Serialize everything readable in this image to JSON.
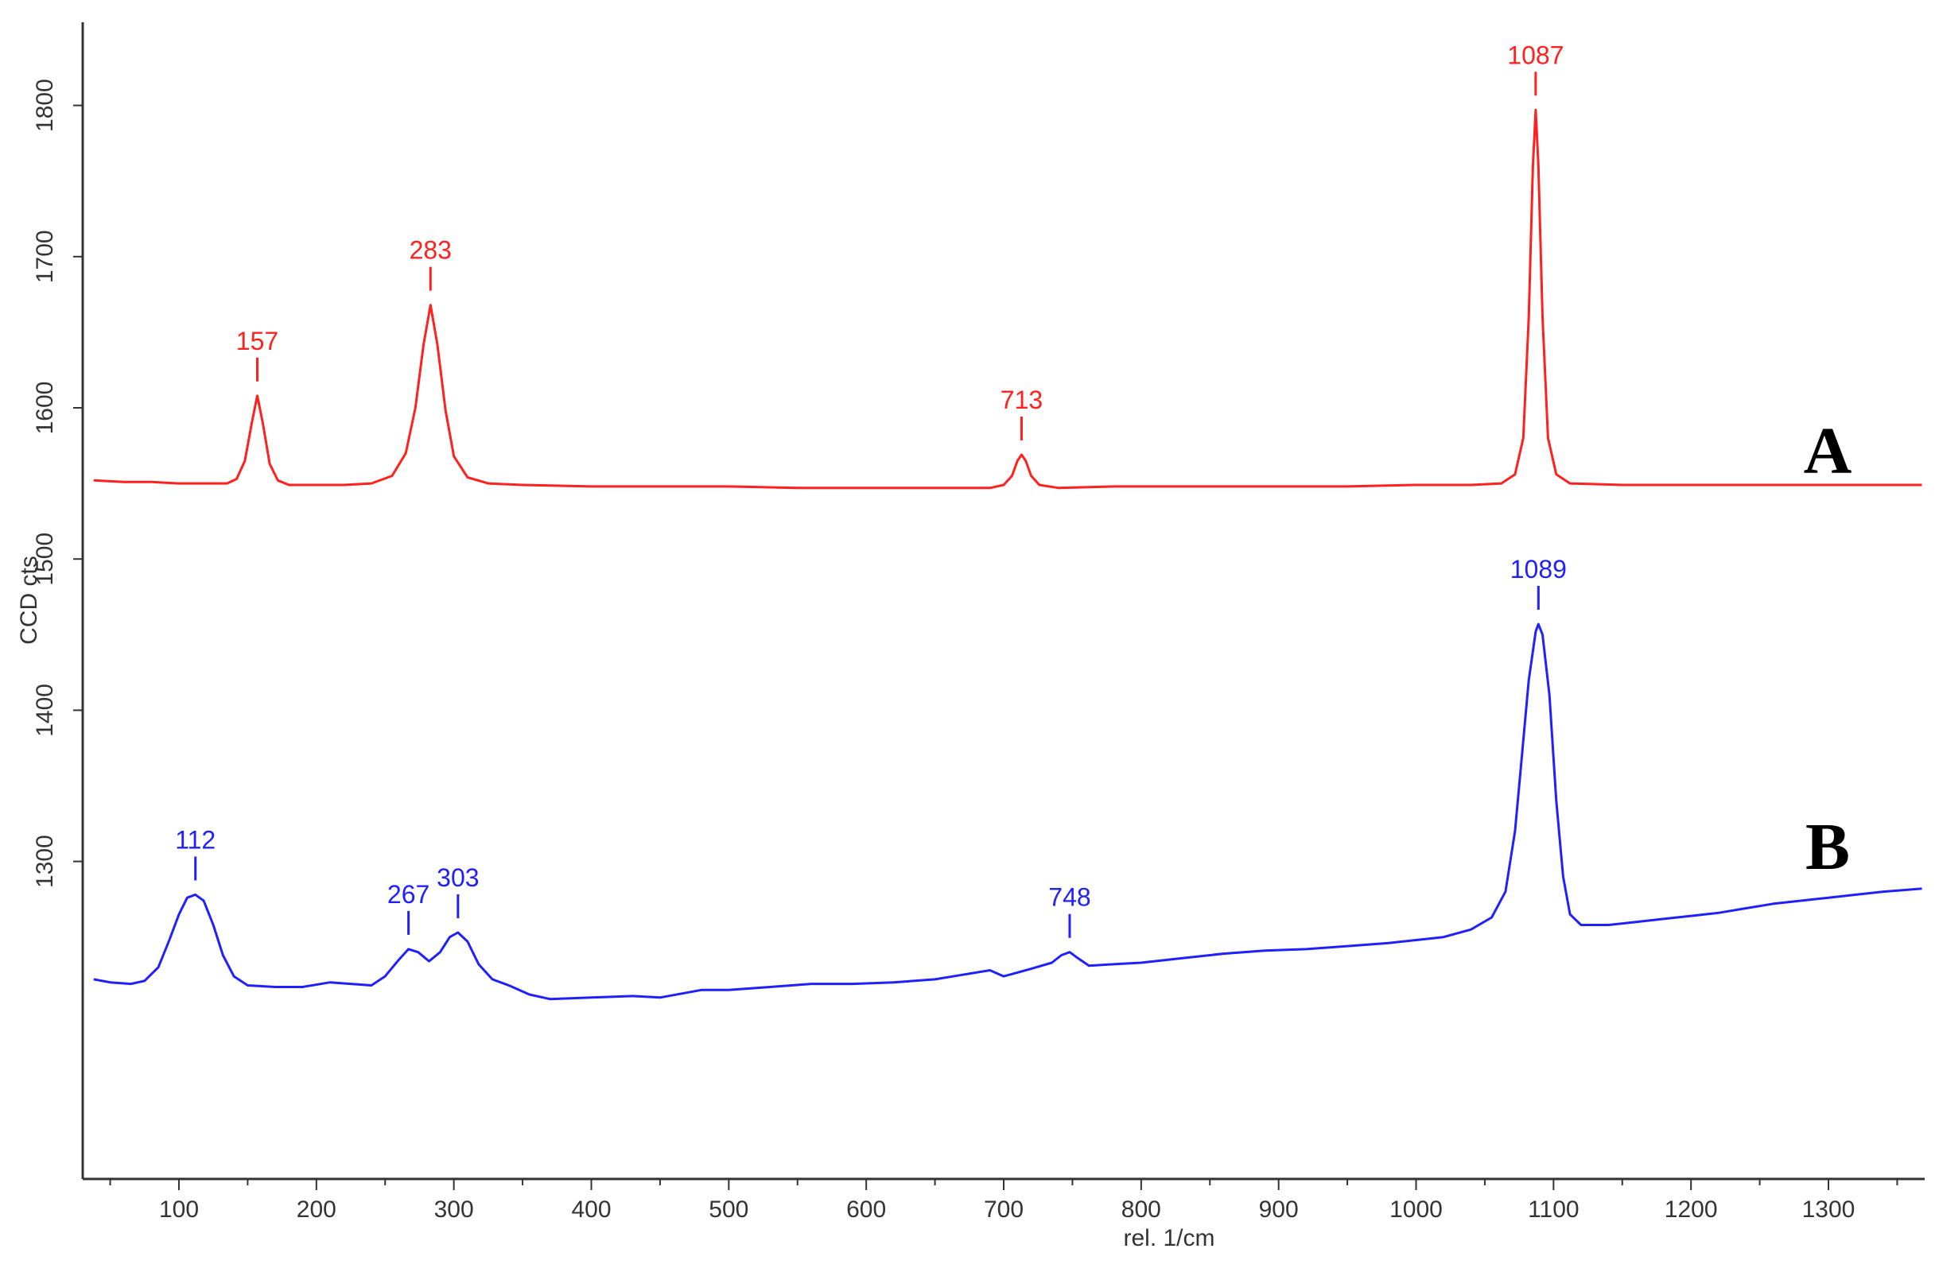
{
  "chart_data": {
    "type": "line",
    "xlabel": "rel. 1/cm",
    "ylabel": "CCD cts",
    "xlim": [
      30,
      1370
    ],
    "ylim": [
      1090,
      1855
    ],
    "x_ticks": [
      100,
      200,
      300,
      400,
      500,
      600,
      700,
      800,
      900,
      1000,
      1100,
      1200,
      1300
    ],
    "y_ticks": [
      1300,
      1400,
      1500,
      1600,
      1700,
      1800
    ],
    "grid": false,
    "legend": "none",
    "series": [
      {
        "name": "A",
        "color": "#ff2020",
        "label_value": 1557,
        "points": [
          [
            38,
            1552
          ],
          [
            60,
            1551
          ],
          [
            80,
            1551
          ],
          [
            100,
            1550
          ],
          [
            120,
            1550
          ],
          [
            135,
            1550
          ],
          [
            142,
            1553
          ],
          [
            148,
            1565
          ],
          [
            153,
            1590
          ],
          [
            157,
            1608
          ],
          [
            161,
            1590
          ],
          [
            166,
            1563
          ],
          [
            172,
            1552
          ],
          [
            180,
            1549
          ],
          [
            200,
            1549
          ],
          [
            220,
            1549
          ],
          [
            240,
            1550
          ],
          [
            255,
            1555
          ],
          [
            265,
            1570
          ],
          [
            272,
            1600
          ],
          [
            278,
            1642
          ],
          [
            283,
            1668
          ],
          [
            288,
            1642
          ],
          [
            294,
            1598
          ],
          [
            300,
            1568
          ],
          [
            310,
            1554
          ],
          [
            325,
            1550
          ],
          [
            350,
            1549
          ],
          [
            400,
            1548
          ],
          [
            450,
            1548
          ],
          [
            500,
            1548
          ],
          [
            550,
            1547
          ],
          [
            600,
            1547
          ],
          [
            650,
            1547
          ],
          [
            690,
            1547
          ],
          [
            700,
            1549
          ],
          [
            706,
            1555
          ],
          [
            710,
            1565
          ],
          [
            713,
            1569
          ],
          [
            716,
            1565
          ],
          [
            720,
            1555
          ],
          [
            726,
            1549
          ],
          [
            740,
            1547
          ],
          [
            780,
            1548
          ],
          [
            850,
            1548
          ],
          [
            900,
            1548
          ],
          [
            950,
            1548
          ],
          [
            1000,
            1549
          ],
          [
            1040,
            1549
          ],
          [
            1062,
            1550
          ],
          [
            1072,
            1556
          ],
          [
            1078,
            1580
          ],
          [
            1082,
            1660
          ],
          [
            1085,
            1760
          ],
          [
            1087,
            1797
          ],
          [
            1089,
            1760
          ],
          [
            1092,
            1660
          ],
          [
            1096,
            1580
          ],
          [
            1102,
            1556
          ],
          [
            1112,
            1550
          ],
          [
            1150,
            1549
          ],
          [
            1200,
            1549
          ],
          [
            1250,
            1549
          ],
          [
            1300,
            1549
          ],
          [
            1340,
            1549
          ],
          [
            1368,
            1549
          ]
        ],
        "peaks": [
          {
            "label": "157",
            "x": 157,
            "y": 1608
          },
          {
            "label": "283",
            "x": 283,
            "y": 1668
          },
          {
            "label": "713",
            "x": 713,
            "y": 1569
          },
          {
            "label": "1087",
            "x": 1087,
            "y": 1797
          }
        ]
      },
      {
        "name": "B",
        "color": "#2020ff",
        "label_value": 1295,
        "points": [
          [
            38,
            1222
          ],
          [
            50,
            1220
          ],
          [
            65,
            1219
          ],
          [
            75,
            1221
          ],
          [
            85,
            1230
          ],
          [
            93,
            1248
          ],
          [
            100,
            1265
          ],
          [
            106,
            1276
          ],
          [
            112,
            1278
          ],
          [
            118,
            1274
          ],
          [
            125,
            1258
          ],
          [
            132,
            1238
          ],
          [
            140,
            1224
          ],
          [
            150,
            1218
          ],
          [
            170,
            1217
          ],
          [
            190,
            1217
          ],
          [
            210,
            1220
          ],
          [
            225,
            1219
          ],
          [
            240,
            1218
          ],
          [
            250,
            1224
          ],
          [
            260,
            1235
          ],
          [
            267,
            1242
          ],
          [
            274,
            1240
          ],
          [
            282,
            1234
          ],
          [
            290,
            1240
          ],
          [
            297,
            1250
          ],
          [
            303,
            1253
          ],
          [
            310,
            1247
          ],
          [
            318,
            1232
          ],
          [
            328,
            1222
          ],
          [
            340,
            1218
          ],
          [
            355,
            1212
          ],
          [
            370,
            1209
          ],
          [
            400,
            1210
          ],
          [
            430,
            1211
          ],
          [
            450,
            1210
          ],
          [
            480,
            1215
          ],
          [
            500,
            1215
          ],
          [
            530,
            1217
          ],
          [
            560,
            1219
          ],
          [
            590,
            1219
          ],
          [
            620,
            1220
          ],
          [
            650,
            1222
          ],
          [
            670,
            1225
          ],
          [
            690,
            1228
          ],
          [
            700,
            1224
          ],
          [
            720,
            1229
          ],
          [
            735,
            1233
          ],
          [
            742,
            1238
          ],
          [
            748,
            1240
          ],
          [
            754,
            1236
          ],
          [
            762,
            1231
          ],
          [
            780,
            1232
          ],
          [
            800,
            1233
          ],
          [
            830,
            1236
          ],
          [
            860,
            1239
          ],
          [
            890,
            1241
          ],
          [
            920,
            1242
          ],
          [
            950,
            1244
          ],
          [
            980,
            1246
          ],
          [
            1000,
            1248
          ],
          [
            1020,
            1250
          ],
          [
            1040,
            1255
          ],
          [
            1055,
            1263
          ],
          [
            1065,
            1280
          ],
          [
            1072,
            1320
          ],
          [
            1077,
            1370
          ],
          [
            1082,
            1420
          ],
          [
            1087,
            1452
          ],
          [
            1089,
            1457
          ],
          [
            1092,
            1450
          ],
          [
            1097,
            1410
          ],
          [
            1102,
            1340
          ],
          [
            1107,
            1290
          ],
          [
            1112,
            1265
          ],
          [
            1120,
            1258
          ],
          [
            1140,
            1258
          ],
          [
            1160,
            1260
          ],
          [
            1180,
            1262
          ],
          [
            1200,
            1264
          ],
          [
            1220,
            1266
          ],
          [
            1240,
            1269
          ],
          [
            1260,
            1272
          ],
          [
            1280,
            1274
          ],
          [
            1300,
            1276
          ],
          [
            1320,
            1278
          ],
          [
            1340,
            1280
          ],
          [
            1368,
            1282
          ]
        ],
        "peaks": [
          {
            "label": "112",
            "x": 112,
            "y": 1278
          },
          {
            "label": "267",
            "x": 267,
            "y": 1242
          },
          {
            "label": "303",
            "x": 303,
            "y": 1253
          },
          {
            "label": "748",
            "x": 748,
            "y": 1240
          },
          {
            "label": "1089",
            "x": 1089,
            "y": 1457
          }
        ]
      }
    ]
  }
}
